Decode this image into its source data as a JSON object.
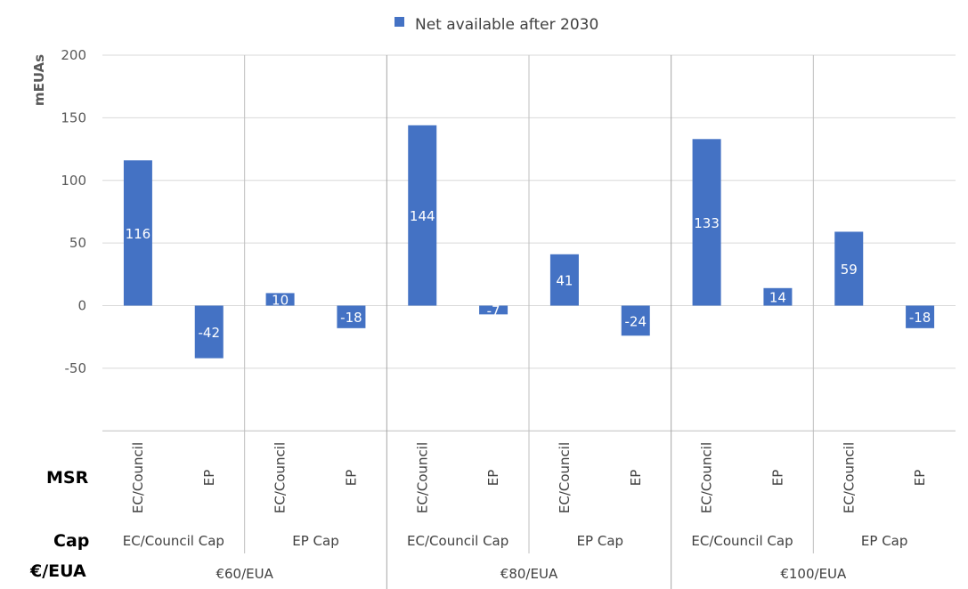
{
  "chart_data": {
    "type": "bar",
    "legend": {
      "position": "top",
      "entries": [
        "Net available after 2030"
      ]
    },
    "ylabel": "mEUAs",
    "ylim": [
      -100,
      200
    ],
    "yticks": [
      200,
      150,
      100,
      50,
      0,
      -50
    ],
    "grid": true,
    "row_labels": {
      "msr": "MSR",
      "cap": "Cap",
      "price": "€/EUA"
    },
    "categories": [
      {
        "msr": "EC/Council",
        "cap": "EC/Council Cap",
        "price": "€60/EUA"
      },
      {
        "msr": "EP",
        "cap": "EC/Council Cap",
        "price": "€60/EUA"
      },
      {
        "msr": "EC/Council",
        "cap": "EP Cap",
        "price": "€60/EUA"
      },
      {
        "msr": "EP",
        "cap": "EP Cap",
        "price": "€60/EUA"
      },
      {
        "msr": "EC/Council",
        "cap": "EC/Council Cap",
        "price": "€80/EUA"
      },
      {
        "msr": "EP",
        "cap": "EC/Council Cap",
        "price": "€80/EUA"
      },
      {
        "msr": "EC/Council",
        "cap": "EP Cap",
        "price": "€80/EUA"
      },
      {
        "msr": "EP",
        "cap": "EP Cap",
        "price": "€80/EUA"
      },
      {
        "msr": "EC/Council",
        "cap": "EC/Council Cap",
        "price": "€100/EUA"
      },
      {
        "msr": "EP",
        "cap": "EC/Council Cap",
        "price": "€100/EUA"
      },
      {
        "msr": "EC/Council",
        "cap": "EP Cap",
        "price": "€100/EUA"
      },
      {
        "msr": "EP",
        "cap": "EP Cap",
        "price": "€100/EUA"
      }
    ],
    "series": [
      {
        "name": "Net available after 2030",
        "color": "#4472c4",
        "values": [
          116,
          -42,
          10,
          -18,
          144,
          -7,
          41,
          -24,
          133,
          14,
          59,
          -18
        ]
      }
    ]
  }
}
